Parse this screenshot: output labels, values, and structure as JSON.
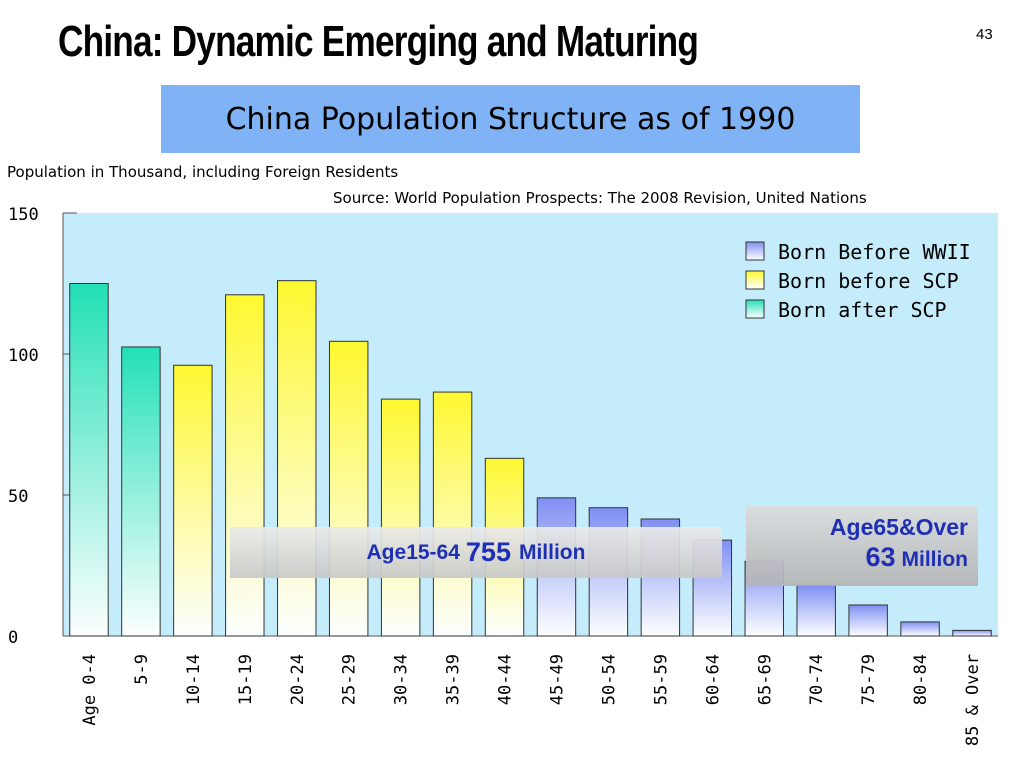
{
  "slide": {
    "title": "China: Dynamic Emerging and Maturing",
    "page_number": "43"
  },
  "chart_data": {
    "type": "bar",
    "title": "China Population Structure as of 1990",
    "ylabel": "Population in Thousand, including Foreign Residents",
    "source": "Source: World Population Prospects: The 2008 Revision, United Nations",
    "categories": [
      "Age 0-4",
      "5-9",
      "10-14",
      "15-19",
      "20-24",
      "25-29",
      "30-34",
      "35-39",
      "40-44",
      "45-49",
      "50-54",
      "55-59",
      "60-64",
      "65-69",
      "70-74",
      "75-79",
      "80-84",
      "85 & Over"
    ],
    "values": [
      125,
      102.5,
      96,
      121,
      126,
      104.5,
      84,
      86.5,
      63,
      49,
      45.5,
      41.5,
      34,
      26.5,
      18,
      11,
      5,
      2
    ],
    "group": [
      "after",
      "after",
      "before_scp",
      "before_scp",
      "before_scp",
      "before_scp",
      "before_scp",
      "before_scp",
      "before_scp",
      "before_wwii",
      "before_wwii",
      "before_wwii",
      "before_wwii",
      "before_wwii",
      "before_wwii",
      "before_wwii",
      "before_wwii",
      "before_wwii"
    ],
    "ylim": [
      0,
      150
    ],
    "yticks": [
      0,
      50,
      100,
      150
    ],
    "legend": [
      {
        "key": "before_wwii",
        "label": "Born Before WWII",
        "color": "#7f8ff2"
      },
      {
        "key": "before_scp",
        "label": "Born before SCP",
        "color": "#fff830"
      },
      {
        "key": "after",
        "label": "Born after SCP",
        "color": "#22e0b6"
      }
    ],
    "legend_position": "top-right",
    "plot_background": "#c4ecfb",
    "annotations": {
      "working_age": {
        "label": "Age15-64",
        "value": "755",
        "unit": "Million"
      },
      "elderly": {
        "label": "Age65&Over",
        "value": "63",
        "unit": "Million"
      }
    }
  }
}
